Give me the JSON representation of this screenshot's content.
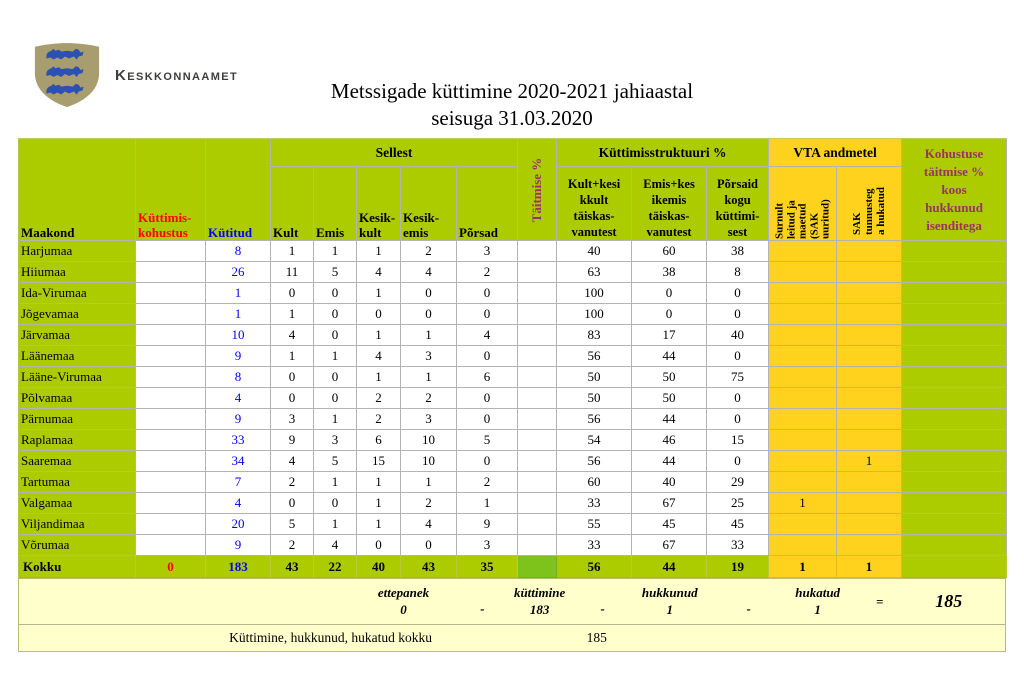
{
  "logo": {
    "org_name": "Keskkonnaamet"
  },
  "title": {
    "line1": "Metssigade küttimine 2020-2021 jahiaastal",
    "line2": "seisuga 31.03.2020"
  },
  "table": {
    "headers": {
      "maakond": "Maakond",
      "kohustus": "Küttimis-\nkohustus",
      "kytitud": "Kütitud",
      "sellest": "Sellest",
      "kult": "Kult",
      "emis": "Emis",
      "kesik_kult": "Kesik-\nkult",
      "kesik_emis": "Kesik-\nemis",
      "porsad": "Põrsad",
      "taitmise": "Täitmise %",
      "struktuur": "Küttimisstruktuuri %",
      "str1": "Kult+kesi\nkkult\ntäiskas-\nvanutest",
      "str2": "Emis+kes\nikemis\ntäiskas-\nvanutest",
      "str3": "Põrsaid\nkogu\nküttimi-\nsest",
      "vta": "VTA andmetel",
      "vta1": "Surnult\nleitud ja\nmaetud\n(SAK\nuuritud)",
      "vta2": "SAK\ntunnusteg\na hukatud",
      "kohustuse": "Kohustuse\ntäitmise %\nkoos\nhukkunud\nisenditega"
    },
    "rows": [
      [
        "Harjumaa",
        "",
        "8",
        "1",
        "1",
        "1",
        "2",
        "3",
        "",
        "40",
        "60",
        "38",
        "",
        "",
        ""
      ],
      [
        "Hiiumaa",
        "",
        "26",
        "11",
        "5",
        "4",
        "4",
        "2",
        "",
        "63",
        "38",
        "8",
        "",
        "",
        ""
      ],
      [
        "Ida-Virumaa",
        "",
        "1",
        "0",
        "0",
        "1",
        "0",
        "0",
        "",
        "100",
        "0",
        "0",
        "",
        "",
        ""
      ],
      [
        "Jõgevamaa",
        "",
        "1",
        "1",
        "0",
        "0",
        "0",
        "0",
        "",
        "100",
        "0",
        "0",
        "",
        "",
        ""
      ],
      [
        "Järvamaa",
        "",
        "10",
        "4",
        "0",
        "1",
        "1",
        "4",
        "",
        "83",
        "17",
        "40",
        "",
        "",
        ""
      ],
      [
        "Läänemaa",
        "",
        "9",
        "1",
        "1",
        "4",
        "3",
        "0",
        "",
        "56",
        "44",
        "0",
        "",
        "",
        ""
      ],
      [
        "Lääne-Virumaa",
        "",
        "8",
        "0",
        "0",
        "1",
        "1",
        "6",
        "",
        "50",
        "50",
        "75",
        "",
        "",
        ""
      ],
      [
        "Põlvamaa",
        "",
        "4",
        "0",
        "0",
        "2",
        "2",
        "0",
        "",
        "50",
        "50",
        "0",
        "",
        "",
        ""
      ],
      [
        "Pärnumaa",
        "",
        "9",
        "3",
        "1",
        "2",
        "3",
        "0",
        "",
        "56",
        "44",
        "0",
        "",
        "",
        ""
      ],
      [
        "Raplamaa",
        "",
        "33",
        "9",
        "3",
        "6",
        "10",
        "5",
        "",
        "54",
        "46",
        "15",
        "",
        "",
        ""
      ],
      [
        "Saaremaa",
        "",
        "34",
        "4",
        "5",
        "15",
        "10",
        "0",
        "",
        "56",
        "44",
        "0",
        "",
        "1",
        ""
      ],
      [
        "Tartumaa",
        "",
        "7",
        "2",
        "1",
        "1",
        "1",
        "2",
        "",
        "60",
        "40",
        "29",
        "",
        "",
        ""
      ],
      [
        "Valgamaa",
        "",
        "4",
        "0",
        "0",
        "1",
        "2",
        "1",
        "",
        "33",
        "67",
        "25",
        "1",
        "",
        ""
      ],
      [
        "Viljandimaa",
        "",
        "20",
        "5",
        "1",
        "1",
        "4",
        "9",
        "",
        "55",
        "45",
        "45",
        "",
        "",
        ""
      ],
      [
        "Võrumaa",
        "",
        "9",
        "2",
        "4",
        "0",
        "0",
        "3",
        "",
        "33",
        "67",
        "33",
        "",
        "",
        ""
      ]
    ],
    "total": {
      "maakond": "Kokku",
      "kohustus": "0",
      "kytitud": "183",
      "kult": "43",
      "emis": "22",
      "kesik_kult": "40",
      "kesik_emis": "43",
      "porsad": "35",
      "taitmise": "",
      "str1": "56",
      "str2": "44",
      "str3": "19",
      "vta1": "1",
      "vta2": "1",
      "kohustuse": ""
    }
  },
  "summary": {
    "items": [
      {
        "label": "ettepanek",
        "value": "0"
      },
      {
        "label": "küttimine",
        "value": "183"
      },
      {
        "label": "hukkunud",
        "value": "1"
      },
      {
        "label": "hukatud",
        "value": "1"
      }
    ],
    "separator": "-",
    "equals": "=",
    "grand_total": "185",
    "footer_label": "Küttimine, hukkunud, hukatud kokku",
    "footer_total": "185"
  },
  "colors": {
    "header_green": "#ADCC00",
    "total_fill_green": "#7EC31B",
    "vta_orange": "#FFD21E",
    "summary_yellow": "#FFFFCC",
    "plum_header_text": "#993366",
    "red_text": "#FF0000",
    "blue_text": "#0000FF",
    "shield_tan": "#A89D6E",
    "lion_blue": "#2C50B4",
    "wordmark_gray": "#3E3E3C"
  }
}
